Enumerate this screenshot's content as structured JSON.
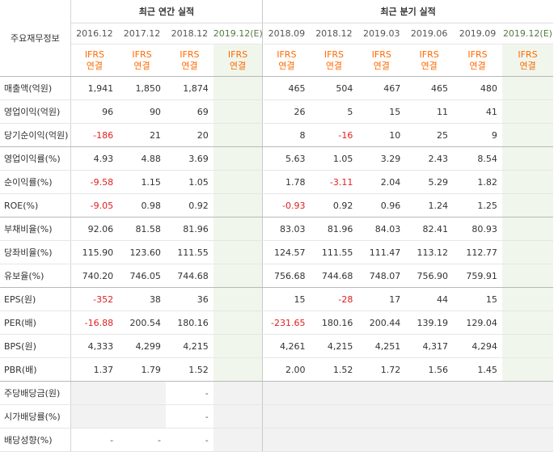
{
  "header": {
    "row_label": "주요재무정보",
    "annual_title": "최근 연간 실적",
    "quarter_title": "최근 분기 실적",
    "annual_periods": [
      "2016.12",
      "2017.12",
      "2018.12",
      "2019.12(E)"
    ],
    "quarter_periods": [
      "2018.09",
      "2018.12",
      "2019.03",
      "2019.06",
      "2019.09",
      "2019.12(E)"
    ],
    "standard_line1": "IFRS",
    "standard_line2": "연결"
  },
  "rows": [
    {
      "label": "매출액(억원)",
      "annual": [
        "1,941",
        "1,850",
        "1,874",
        ""
      ],
      "quarter": [
        "465",
        "504",
        "467",
        "465",
        "480",
        ""
      ]
    },
    {
      "label": "영업이익(억원)",
      "annual": [
        "96",
        "90",
        "69",
        ""
      ],
      "quarter": [
        "26",
        "5",
        "15",
        "11",
        "41",
        ""
      ]
    },
    {
      "label": "당기순이익(억원)",
      "annual": [
        "-186",
        "21",
        "20",
        ""
      ],
      "quarter": [
        "8",
        "-16",
        "10",
        "25",
        "9",
        ""
      ]
    },
    {
      "label": "영업이익률(%)",
      "annual": [
        "4.93",
        "4.88",
        "3.69",
        ""
      ],
      "quarter": [
        "5.63",
        "1.05",
        "3.29",
        "2.43",
        "8.54",
        ""
      ]
    },
    {
      "label": "순이익률(%)",
      "annual": [
        "-9.58",
        "1.15",
        "1.05",
        ""
      ],
      "quarter": [
        "1.78",
        "-3.11",
        "2.04",
        "5.29",
        "1.82",
        ""
      ]
    },
    {
      "label": "ROE(%)",
      "annual": [
        "-9.05",
        "0.98",
        "0.92",
        ""
      ],
      "quarter": [
        "-0.93",
        "0.92",
        "0.96",
        "1.24",
        "1.25",
        ""
      ]
    },
    {
      "label": "부채비율(%)",
      "annual": [
        "92.06",
        "81.58",
        "81.96",
        ""
      ],
      "quarter": [
        "83.03",
        "81.96",
        "84.03",
        "82.41",
        "80.93",
        ""
      ]
    },
    {
      "label": "당좌비율(%)",
      "annual": [
        "115.90",
        "123.60",
        "111.55",
        ""
      ],
      "quarter": [
        "124.57",
        "111.55",
        "111.47",
        "113.12",
        "112.77",
        ""
      ]
    },
    {
      "label": "유보율(%)",
      "annual": [
        "740.20",
        "746.05",
        "744.68",
        ""
      ],
      "quarter": [
        "756.68",
        "744.68",
        "748.07",
        "756.90",
        "759.91",
        ""
      ]
    },
    {
      "label": "EPS(원)",
      "annual": [
        "-352",
        "38",
        "36",
        ""
      ],
      "quarter": [
        "15",
        "-28",
        "17",
        "44",
        "15",
        ""
      ]
    },
    {
      "label": "PER(배)",
      "annual": [
        "-16.88",
        "200.54",
        "180.16",
        ""
      ],
      "quarter": [
        "-231.65",
        "180.16",
        "200.44",
        "139.19",
        "129.04",
        ""
      ]
    },
    {
      "label": "BPS(원)",
      "annual": [
        "4,333",
        "4,299",
        "4,215",
        ""
      ],
      "quarter": [
        "4,261",
        "4,215",
        "4,251",
        "4,317",
        "4,294",
        ""
      ]
    },
    {
      "label": "PBR(배)",
      "annual": [
        "1.37",
        "1.79",
        "1.52",
        ""
      ],
      "quarter": [
        "2.00",
        "1.52",
        "1.72",
        "1.56",
        "1.45",
        ""
      ]
    },
    {
      "label": "주당배당금(원)",
      "annual": [
        "",
        "",
        "-",
        ""
      ],
      "quarter": [
        "",
        "",
        "",
        "",
        "",
        ""
      ]
    },
    {
      "label": "시가배당률(%)",
      "annual": [
        "",
        "",
        "-",
        ""
      ],
      "quarter": [
        "",
        "",
        "",
        "",
        "",
        ""
      ]
    },
    {
      "label": "배당성향(%)",
      "annual": [
        "-",
        "-",
        "-",
        ""
      ],
      "quarter": [
        "",
        "",
        "",
        "",
        "",
        ""
      ]
    }
  ],
  "colors": {
    "negative": "#e02020",
    "standard": "#ff6a00",
    "estimate_bg": "#f0f6ec",
    "empty_bg": "#f2f2f2"
  }
}
